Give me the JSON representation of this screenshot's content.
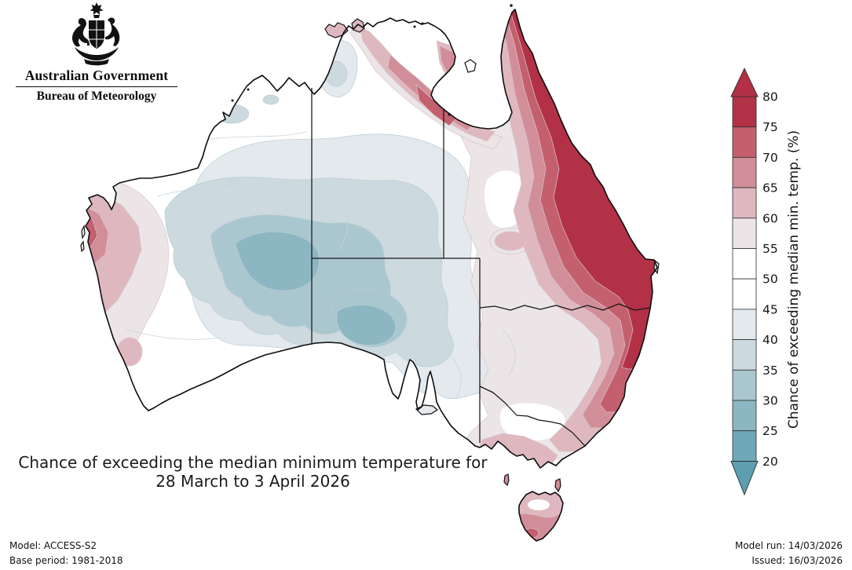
{
  "header": {
    "government": "Australian Government",
    "agency": "Bureau of Meteorology"
  },
  "title": {
    "line1": "Chance of exceeding the median minimum temperature for",
    "line2": "28 March to 3 April 2026"
  },
  "colorbar": {
    "label": "Chance of exceeding median min. temp. (%)",
    "ticks": [
      80,
      75,
      70,
      65,
      60,
      55,
      50,
      45,
      40,
      35,
      30,
      25,
      20
    ],
    "segments": [
      {
        "range": "75-80",
        "color": "#b23146"
      },
      {
        "range": "70-75",
        "color": "#c45f6e"
      },
      {
        "range": "65-70",
        "color": "#d18e99"
      },
      {
        "range": "60-65",
        "color": "#dfb8bf"
      },
      {
        "range": "55-60",
        "color": "#ebe5e7"
      },
      {
        "range": "50-55",
        "color": "#ffffff"
      },
      {
        "range": "45-50",
        "color": "#ffffff"
      },
      {
        "range": "40-45",
        "color": "#e3e9ec"
      },
      {
        "range": "35-40",
        "color": "#ccd9de"
      },
      {
        "range": "30-35",
        "color": "#aac6cf"
      },
      {
        "range": "25-30",
        "color": "#8cb6c2"
      },
      {
        "range": "20-25",
        "color": "#6fa8b8"
      }
    ],
    "arrow_above": {
      "range": ">80",
      "color": "#b23146"
    },
    "arrow_below": {
      "range": "<20",
      "color": "#5d9fb0"
    }
  },
  "footer": {
    "model": "Model: ACCESS-S2",
    "base_period": "Base period: 1981-2018",
    "model_run": "Model run: 14/03/2026",
    "issued": "Issued: 16/03/2026"
  },
  "chart_data": {
    "type": "filled-contour-map",
    "region": "Australia",
    "variable": "Chance of exceeding the median minimum temperature (%)",
    "period": "28 March to 3 April 2026",
    "scale_ticks": [
      80,
      75,
      70,
      65,
      60,
      55,
      50,
      45,
      40,
      35,
      30,
      25,
      20
    ],
    "scale_range_shown": [
      20,
      80
    ],
    "regions": [
      {
        "area": "Central Western Australia and western South Australia interior",
        "chance_pct": "25-40"
      },
      {
        "area": "Eastern Queensland coast and Cape York Peninsula",
        "chance_pct": "75-80+"
      },
      {
        "area": "Inland eastern Queensland and northeast NSW",
        "chance_pct": "60-75"
      },
      {
        "area": "New South Wales east coast",
        "chance_pct": "65-80"
      },
      {
        "area": "Top End NT (Darwin toward Gulf of Carpentaria)",
        "chance_pct": "60-75"
      },
      {
        "area": "WA west coast around Shark Bay / Geraldton",
        "chance_pct": "60-75"
      },
      {
        "area": "Southwest WA, Nullarbor, Victoria, southeast SA",
        "chance_pct": "45-55"
      },
      {
        "area": "Tasmania",
        "chance_pct": "55-70"
      }
    ]
  }
}
